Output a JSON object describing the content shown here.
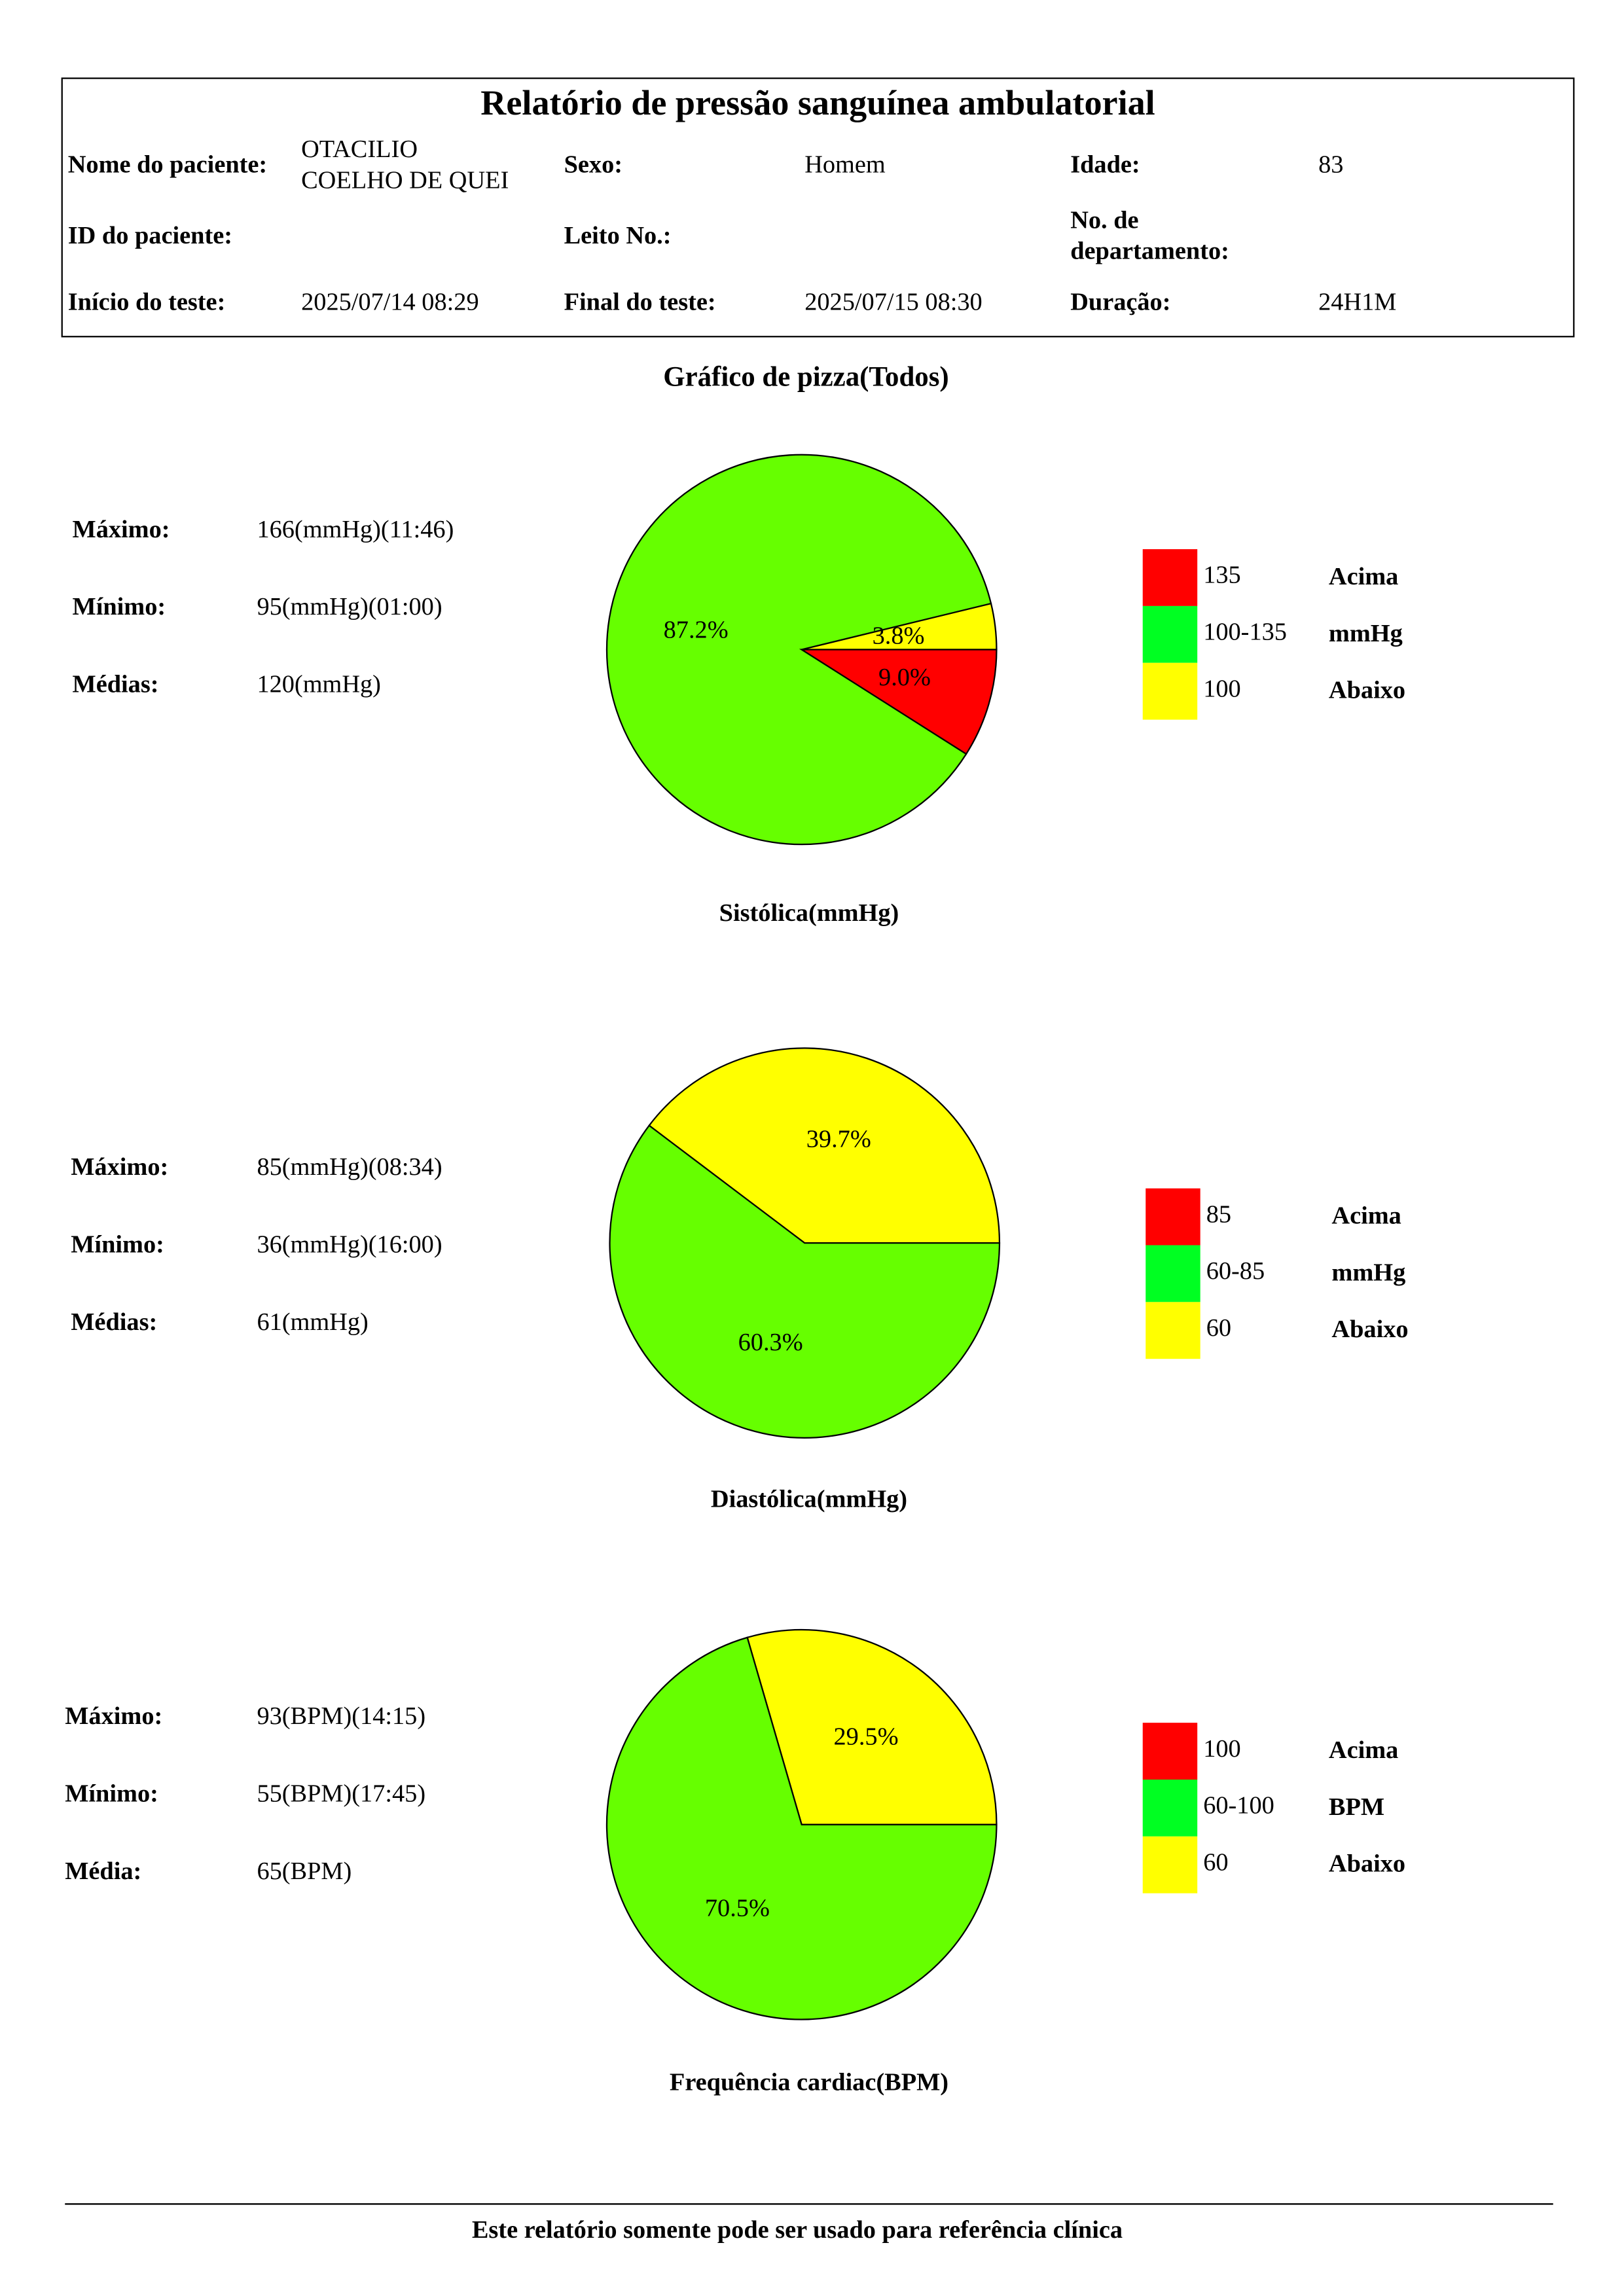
{
  "header": {
    "title": "Relatório de pressão sanguínea ambulatorial",
    "rows": [
      [
        {
          "label": "Nome do paciente:",
          "value": [
            "OTACILIO",
            "COELHO  DE QUEI"
          ]
        },
        {
          "label": "Sexo:",
          "value": "Homem"
        },
        {
          "label": "Idade:",
          "value": "83"
        }
      ],
      [
        {
          "label": "ID do paciente:"
        },
        {
          "label": "Leito No.:"
        },
        {
          "label": [
            "No. de",
            "departamento:"
          ]
        }
      ],
      [
        {
          "label": "Início do teste:",
          "value": "2025/07/14 08:29"
        },
        {
          "label": "Final do teste:",
          "value": "2025/07/15 08:30"
        },
        {
          "label": "Duração:",
          "value": "24H1M"
        }
      ]
    ]
  },
  "section_title": "Gráfico de pizza(Todos)",
  "chart_data": [
    {
      "type": "pie",
      "title": "Sistólica(mmHg)",
      "values": [
        3.8,
        87.2,
        9.0
      ],
      "value_labels": [
        "3.8%",
        "87.2%",
        "9.0%"
      ],
      "colors": [
        "#ffff00",
        "#66ff00",
        "#ff0000"
      ],
      "stats": [
        {
          "label": "Máximo:",
          "value": "166(mmHg)(11:46)"
        },
        {
          "label": "Mínimo:",
          "value": "95(mmHg)(01:00)"
        },
        {
          "label": "Médias:",
          "value": "120(mmHg)"
        }
      ],
      "legend": [
        {
          "color": "#ff0000",
          "range": "135",
          "label": "Acima"
        },
        {
          "color": "#00ff22",
          "range": "100-135",
          "label": "mmHg"
        },
        {
          "color": "#ffff00",
          "range": "100",
          "label": "Abaixo"
        }
      ]
    },
    {
      "type": "pie",
      "title": "Diastólica(mmHg)",
      "values": [
        39.7,
        60.3
      ],
      "value_labels": [
        "39.7%",
        "60.3%"
      ],
      "colors": [
        "#ffff00",
        "#66ff00"
      ],
      "stats": [
        {
          "label": "Máximo:",
          "value": "85(mmHg)(08:34)"
        },
        {
          "label": "Mínimo:",
          "value": "36(mmHg)(16:00)"
        },
        {
          "label": "Médias:",
          "value": "61(mmHg)"
        }
      ],
      "legend": [
        {
          "color": "#ff0000",
          "range": "85",
          "label": "Acima"
        },
        {
          "color": "#00ff22",
          "range": "60-85",
          "label": "mmHg"
        },
        {
          "color": "#ffff00",
          "range": "60",
          "label": "Abaixo"
        }
      ]
    },
    {
      "type": "pie",
      "title": "Frequência cardiac(BPM)",
      "values": [
        29.5,
        70.5
      ],
      "value_labels": [
        "29.5%",
        "70.5%"
      ],
      "colors": [
        "#ffff00",
        "#66ff00"
      ],
      "stats": [
        {
          "label": "Máximo:",
          "value": "93(BPM)(14:15)"
        },
        {
          "label": "Mínimo:",
          "value": "55(BPM)(17:45)"
        },
        {
          "label": "Média:",
          "value": "65(BPM)"
        }
      ],
      "legend": [
        {
          "color": "#ff0000",
          "range": "100",
          "label": "Acima"
        },
        {
          "color": "#00ff22",
          "range": "60-100",
          "label": "BPM"
        },
        {
          "color": "#ffff00",
          "range": "60",
          "label": "Abaixo"
        }
      ]
    }
  ],
  "footer": "Este relatório somente pode ser usado para referência clínica"
}
